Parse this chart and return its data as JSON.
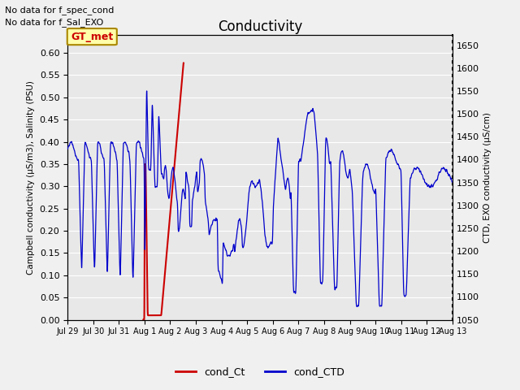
{
  "title": "Conductivity",
  "left_ylabel": "Campbell conductivity (μS/m3), Salinity (PSU)",
  "right_ylabel": "CTD, EXO conductivity (μS/cm)",
  "left_ylim": [
    0.0,
    0.64
  ],
  "right_ylim": [
    1050,
    1672
  ],
  "left_yticks": [
    0.0,
    0.05,
    0.1,
    0.15,
    0.2,
    0.25,
    0.3,
    0.35,
    0.4,
    0.45,
    0.5,
    0.55,
    0.6
  ],
  "right_yticks": [
    1050,
    1100,
    1150,
    1200,
    1250,
    1300,
    1350,
    1400,
    1450,
    1500,
    1550,
    1600,
    1650
  ],
  "bg_color": "#e8e8e8",
  "grid_color": "#ffffff",
  "text_no_data_1": "No data for f_spec_cond",
  "text_no_data_2": "No data for f_Sal_EXO",
  "gt_met_label": "GT_met",
  "legend_entries": [
    "cond_Ct",
    "cond_CTD"
  ],
  "legend_colors": [
    "#cc0000",
    "#0000cc"
  ],
  "line_cond_ct_color": "#cc0000",
  "line_cond_ctd_color": "#0000cc",
  "xtick_labels": [
    "Jul 29",
    "Jul 30",
    "Jul 31",
    "Aug 1",
    "Aug 2",
    "Aug 3",
    "Aug 4",
    "Aug 5",
    "Aug 6",
    "Aug 7",
    "Aug 8",
    "Aug 9",
    "Aug 10",
    "Aug 11",
    "Aug 12",
    "Aug 13"
  ],
  "figsize": [
    6.4,
    4.8
  ],
  "dpi": 100
}
